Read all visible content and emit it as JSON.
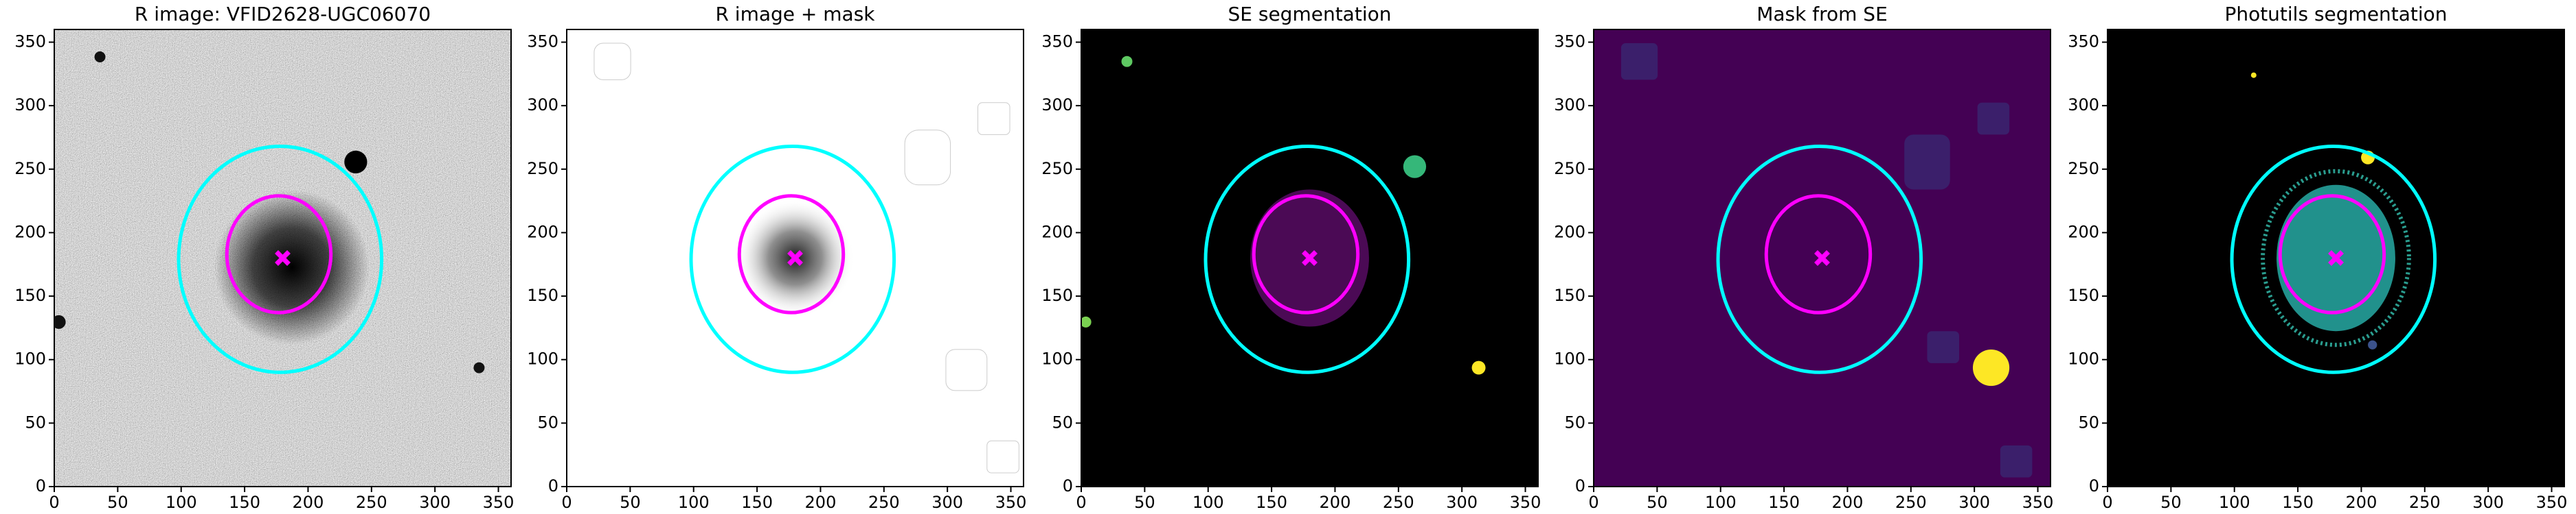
{
  "chart_data": [
    {
      "type": "image",
      "title": "R image: VFID2628-UGC06070",
      "background": "noise",
      "xlim": [
        0,
        360
      ],
      "ylim": [
        0,
        360
      ],
      "xticks": [
        0,
        50,
        100,
        150,
        200,
        250,
        300,
        350
      ],
      "yticks": [
        0,
        50,
        100,
        150,
        200,
        250,
        300,
        350
      ],
      "ellipses": [
        {
          "cx": 178,
          "cy": 179,
          "rx": 80,
          "ry": 89,
          "color": "#00ffff"
        },
        {
          "cx": 177,
          "cy": 183,
          "rx": 41,
          "ry": 46,
          "color": "#ff00ff"
        }
      ],
      "marker": {
        "x": 180,
        "y": 180,
        "color": "#ff00ff"
      }
    },
    {
      "type": "image",
      "title": "R image + mask",
      "background": "white",
      "xlim": [
        0,
        360
      ],
      "ylim": [
        0,
        360
      ],
      "xticks": [
        0,
        50,
        100,
        150,
        200,
        250,
        300,
        350
      ],
      "yticks": [
        0,
        50,
        100,
        150,
        200,
        250,
        300,
        350
      ],
      "ellipses": [
        {
          "cx": 178,
          "cy": 179,
          "rx": 80,
          "ry": 89,
          "color": "#00ffff"
        },
        {
          "cx": 177,
          "cy": 183,
          "rx": 41,
          "ry": 46,
          "color": "#ff00ff"
        }
      ],
      "marker": {
        "x": 180,
        "y": 180,
        "color": "#ff00ff"
      }
    },
    {
      "type": "image",
      "title": "SE segmentation",
      "background": "black",
      "xlim": [
        0,
        360
      ],
      "ylim": [
        0,
        360
      ],
      "xticks": [
        0,
        50,
        100,
        150,
        200,
        250,
        300,
        350
      ],
      "yticks": [
        0,
        50,
        100,
        150,
        200,
        250,
        300,
        350
      ],
      "ellipses": [
        {
          "cx": 178,
          "cy": 179,
          "rx": 80,
          "ry": 89,
          "color": "#00ffff"
        },
        {
          "cx": 177,
          "cy": 183,
          "rx": 41,
          "ry": 46,
          "color": "#ff00ff"
        }
      ],
      "marker": {
        "x": 180,
        "y": 180,
        "color": "#ff00ff"
      }
    },
    {
      "type": "image",
      "title": "Mask from SE",
      "background": "#440154",
      "xlim": [
        0,
        360
      ],
      "ylim": [
        0,
        360
      ],
      "xticks": [
        0,
        50,
        100,
        150,
        200,
        250,
        300,
        350
      ],
      "yticks": [
        0,
        50,
        100,
        150,
        200,
        250,
        300,
        350
      ],
      "ellipses": [
        {
          "cx": 178,
          "cy": 179,
          "rx": 80,
          "ry": 89,
          "color": "#00ffff"
        },
        {
          "cx": 177,
          "cy": 183,
          "rx": 41,
          "ry": 46,
          "color": "#ff00ff"
        }
      ],
      "marker": {
        "x": 180,
        "y": 180,
        "color": "#ff00ff"
      }
    },
    {
      "type": "image",
      "title": "Photutils segmentation",
      "background": "black",
      "xlim": [
        0,
        360
      ],
      "ylim": [
        0,
        360
      ],
      "xticks": [
        0,
        50,
        100,
        150,
        200,
        250,
        300,
        350
      ],
      "yticks": [
        0,
        50,
        100,
        150,
        200,
        250,
        300,
        350
      ],
      "ellipses": [
        {
          "cx": 178,
          "cy": 179,
          "rx": 80,
          "ry": 89,
          "color": "#00ffff"
        },
        {
          "cx": 177,
          "cy": 183,
          "rx": 41,
          "ry": 46,
          "color": "#ff00ff"
        }
      ],
      "marker": {
        "x": 180,
        "y": 180,
        "color": "#ff00ff"
      }
    }
  ]
}
